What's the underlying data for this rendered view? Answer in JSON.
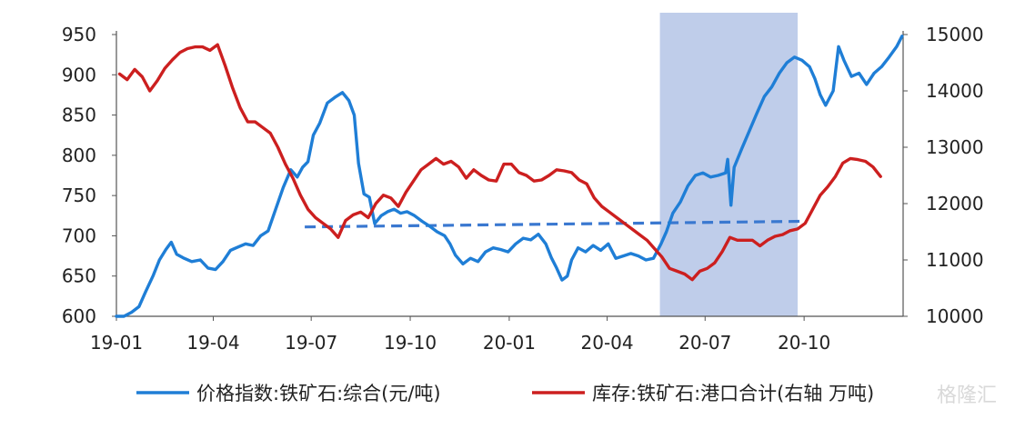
{
  "chart_data": {
    "type": "line",
    "title": "",
    "xlabel": "",
    "ylabel": "",
    "y2label": "",
    "x_ticks": [
      "19-01",
      "19-04",
      "19-07",
      "19-10",
      "20-01",
      "20-04",
      "20-07",
      "20-10"
    ],
    "y_left_ticks": [
      "600",
      "650",
      "700",
      "750",
      "800",
      "850",
      "900",
      "950"
    ],
    "y_right_ticks": [
      "10000",
      "11000",
      "12000",
      "13000",
      "14000",
      "15000"
    ],
    "ylim_left": [
      600,
      950
    ],
    "ylim_right": [
      10000,
      15000
    ],
    "grid": false,
    "legend_position": "bottom",
    "colors": {
      "price": "#1f7ed6",
      "stock": "#cc1f1f",
      "shade": "#b8c8e8",
      "trend": "#3a78d0"
    },
    "shaded_range": [
      "2020-05-20",
      "2020-09-25"
    ],
    "trend_line": {
      "series": "price",
      "points": [
        {
          "x": "2019-06-25",
          "y": 711
        },
        {
          "x": "2020-09-30",
          "y": 718
        }
      ]
    },
    "series": [
      {
        "name": "价格指数:铁矿石:综合(元/吨)",
        "axis": "left",
        "points": [
          [
            "2019-01-01",
            600
          ],
          [
            "2019-01-08",
            600
          ],
          [
            "2019-01-15",
            605
          ],
          [
            "2019-01-22",
            612
          ],
          [
            "2019-01-28",
            630
          ],
          [
            "2019-02-04",
            650
          ],
          [
            "2019-02-10",
            670
          ],
          [
            "2019-02-16",
            683
          ],
          [
            "2019-02-21",
            692
          ],
          [
            "2019-02-26",
            677
          ],
          [
            "2019-03-05",
            672
          ],
          [
            "2019-03-12",
            668
          ],
          [
            "2019-03-20",
            670
          ],
          [
            "2019-03-27",
            660
          ],
          [
            "2019-04-03",
            658
          ],
          [
            "2019-04-10",
            668
          ],
          [
            "2019-04-17",
            682
          ],
          [
            "2019-04-24",
            686
          ],
          [
            "2019-05-01",
            690
          ],
          [
            "2019-05-08",
            688
          ],
          [
            "2019-05-15",
            700
          ],
          [
            "2019-05-22",
            706
          ],
          [
            "2019-05-29",
            733
          ],
          [
            "2019-06-05",
            760
          ],
          [
            "2019-06-12",
            782
          ],
          [
            "2019-06-18",
            773
          ],
          [
            "2019-06-23",
            785
          ],
          [
            "2019-06-28",
            792
          ],
          [
            "2019-07-03",
            825
          ],
          [
            "2019-07-09",
            840
          ],
          [
            "2019-07-16",
            865
          ],
          [
            "2019-07-23",
            872
          ],
          [
            "2019-07-30",
            878
          ],
          [
            "2019-08-05",
            868
          ],
          [
            "2019-08-10",
            850
          ],
          [
            "2019-08-14",
            790
          ],
          [
            "2019-08-19",
            752
          ],
          [
            "2019-08-24",
            748
          ],
          [
            "2019-08-29",
            715
          ],
          [
            "2019-09-04",
            725
          ],
          [
            "2019-09-10",
            730
          ],
          [
            "2019-09-16",
            733
          ],
          [
            "2019-09-22",
            728
          ],
          [
            "2019-09-28",
            730
          ],
          [
            "2019-10-05",
            725
          ],
          [
            "2019-10-12",
            718
          ],
          [
            "2019-10-19",
            712
          ],
          [
            "2019-10-26",
            705
          ],
          [
            "2019-11-02",
            700
          ],
          [
            "2019-11-07",
            690
          ],
          [
            "2019-11-12",
            676
          ],
          [
            "2019-11-19",
            665
          ],
          [
            "2019-11-26",
            672
          ],
          [
            "2019-12-03",
            668
          ],
          [
            "2019-12-10",
            680
          ],
          [
            "2019-12-17",
            685
          ],
          [
            "2019-12-24",
            683
          ],
          [
            "2019-12-31",
            680
          ],
          [
            "2020-01-07",
            690
          ],
          [
            "2020-01-14",
            697
          ],
          [
            "2020-01-21",
            695
          ],
          [
            "2020-01-28",
            702
          ],
          [
            "2020-02-04",
            690
          ],
          [
            "2020-02-09",
            673
          ],
          [
            "2020-02-14",
            660
          ],
          [
            "2020-02-19",
            645
          ],
          [
            "2020-02-24",
            650
          ],
          [
            "2020-02-28",
            670
          ],
          [
            "2020-03-05",
            685
          ],
          [
            "2020-03-12",
            680
          ],
          [
            "2020-03-19",
            688
          ],
          [
            "2020-03-26",
            682
          ],
          [
            "2020-04-02",
            690
          ],
          [
            "2020-04-09",
            672
          ],
          [
            "2020-04-16",
            675
          ],
          [
            "2020-04-23",
            678
          ],
          [
            "2020-04-30",
            675
          ],
          [
            "2020-05-07",
            670
          ],
          [
            "2020-05-14",
            672
          ],
          [
            "2020-05-21",
            690
          ],
          [
            "2020-05-26",
            705
          ],
          [
            "2020-06-01",
            728
          ],
          [
            "2020-06-08",
            742
          ],
          [
            "2020-06-15",
            762
          ],
          [
            "2020-06-22",
            775
          ],
          [
            "2020-06-29",
            778
          ],
          [
            "2020-07-06",
            773
          ],
          [
            "2020-07-13",
            775
          ],
          [
            "2020-07-20",
            778
          ],
          [
            "2020-07-22",
            795
          ],
          [
            "2020-07-25",
            738
          ],
          [
            "2020-07-28",
            785
          ],
          [
            "2020-08-04",
            808
          ],
          [
            "2020-08-11",
            830
          ],
          [
            "2020-08-18",
            852
          ],
          [
            "2020-08-25",
            873
          ],
          [
            "2020-09-01",
            885
          ],
          [
            "2020-09-08",
            902
          ],
          [
            "2020-09-15",
            915
          ],
          [
            "2020-09-22",
            922
          ],
          [
            "2020-09-29",
            918
          ],
          [
            "2020-10-06",
            910
          ],
          [
            "2020-10-11",
            895
          ],
          [
            "2020-10-16",
            875
          ],
          [
            "2020-10-21",
            862
          ],
          [
            "2020-10-28",
            880
          ],
          [
            "2020-11-02",
            935
          ],
          [
            "2020-11-07",
            918
          ],
          [
            "2020-11-14",
            898
          ],
          [
            "2020-11-21",
            902
          ],
          [
            "2020-11-28",
            888
          ],
          [
            "2020-12-05",
            902
          ],
          [
            "2020-12-12",
            910
          ],
          [
            "2020-12-19",
            922
          ],
          [
            "2020-12-26",
            935
          ],
          [
            "2020-12-31",
            948
          ]
        ]
      },
      {
        "name": "库存:铁矿石:港口合计(右轴 万吨)",
        "axis": "right",
        "points": [
          [
            "2019-01-04",
            14300
          ],
          [
            "2019-01-11",
            14200
          ],
          [
            "2019-01-18",
            14380
          ],
          [
            "2019-01-25",
            14250
          ],
          [
            "2019-02-01",
            14000
          ],
          [
            "2019-02-08",
            14180
          ],
          [
            "2019-02-15",
            14400
          ],
          [
            "2019-02-22",
            14550
          ],
          [
            "2019-03-01",
            14680
          ],
          [
            "2019-03-08",
            14750
          ],
          [
            "2019-03-15",
            14780
          ],
          [
            "2019-03-22",
            14780
          ],
          [
            "2019-03-29",
            14720
          ],
          [
            "2019-04-05",
            14820
          ],
          [
            "2019-04-12",
            14450
          ],
          [
            "2019-04-19",
            14050
          ],
          [
            "2019-04-26",
            13700
          ],
          [
            "2019-05-03",
            13450
          ],
          [
            "2019-05-10",
            13450
          ],
          [
            "2019-05-17",
            13350
          ],
          [
            "2019-05-24",
            13250
          ],
          [
            "2019-05-31",
            13000
          ],
          [
            "2019-06-07",
            12700
          ],
          [
            "2019-06-14",
            12450
          ],
          [
            "2019-06-21",
            12150
          ],
          [
            "2019-06-28",
            11900
          ],
          [
            "2019-07-05",
            11750
          ],
          [
            "2019-07-12",
            11650
          ],
          [
            "2019-07-19",
            11550
          ],
          [
            "2019-07-26",
            11400
          ],
          [
            "2019-08-02",
            11700
          ],
          [
            "2019-08-09",
            11800
          ],
          [
            "2019-08-16",
            11850
          ],
          [
            "2019-08-23",
            11750
          ],
          [
            "2019-08-30",
            12000
          ],
          [
            "2019-09-06",
            12150
          ],
          [
            "2019-09-13",
            12100
          ],
          [
            "2019-09-20",
            11950
          ],
          [
            "2019-09-27",
            12200
          ],
          [
            "2019-10-04",
            12400
          ],
          [
            "2019-10-11",
            12600
          ],
          [
            "2019-10-18",
            12700
          ],
          [
            "2019-10-25",
            12800
          ],
          [
            "2019-11-01",
            12700
          ],
          [
            "2019-11-08",
            12750
          ],
          [
            "2019-11-15",
            12650
          ],
          [
            "2019-11-22",
            12450
          ],
          [
            "2019-11-29",
            12600
          ],
          [
            "2019-12-06",
            12500
          ],
          [
            "2019-12-13",
            12420
          ],
          [
            "2019-12-20",
            12400
          ],
          [
            "2019-12-27",
            12700
          ],
          [
            "2020-01-03",
            12700
          ],
          [
            "2020-01-10",
            12550
          ],
          [
            "2020-01-17",
            12500
          ],
          [
            "2020-01-24",
            12400
          ],
          [
            "2020-01-31",
            12420
          ],
          [
            "2020-02-07",
            12500
          ],
          [
            "2020-02-14",
            12600
          ],
          [
            "2020-02-21",
            12580
          ],
          [
            "2020-02-28",
            12550
          ],
          [
            "2020-03-06",
            12420
          ],
          [
            "2020-03-13",
            12350
          ],
          [
            "2020-03-20",
            12100
          ],
          [
            "2020-03-27",
            11950
          ],
          [
            "2020-04-03",
            11850
          ],
          [
            "2020-04-10",
            11750
          ],
          [
            "2020-04-17",
            11650
          ],
          [
            "2020-04-24",
            11550
          ],
          [
            "2020-05-01",
            11450
          ],
          [
            "2020-05-08",
            11350
          ],
          [
            "2020-05-15",
            11200
          ],
          [
            "2020-05-22",
            11050
          ],
          [
            "2020-05-29",
            10850
          ],
          [
            "2020-06-05",
            10800
          ],
          [
            "2020-06-12",
            10750
          ],
          [
            "2020-06-19",
            10650
          ],
          [
            "2020-06-26",
            10800
          ],
          [
            "2020-07-03",
            10850
          ],
          [
            "2020-07-10",
            10950
          ],
          [
            "2020-07-17",
            11150
          ],
          [
            "2020-07-24",
            11400
          ],
          [
            "2020-07-31",
            11350
          ],
          [
            "2020-08-07",
            11350
          ],
          [
            "2020-08-14",
            11350
          ],
          [
            "2020-08-21",
            11250
          ],
          [
            "2020-08-28",
            11350
          ],
          [
            "2020-09-04",
            11420
          ],
          [
            "2020-09-11",
            11450
          ],
          [
            "2020-09-18",
            11520
          ],
          [
            "2020-09-25",
            11550
          ],
          [
            "2020-10-02",
            11650
          ],
          [
            "2020-10-09",
            11900
          ],
          [
            "2020-10-16",
            12150
          ],
          [
            "2020-10-23",
            12300
          ],
          [
            "2020-10-30",
            12480
          ],
          [
            "2020-11-06",
            12720
          ],
          [
            "2020-11-13",
            12800
          ],
          [
            "2020-11-20",
            12780
          ],
          [
            "2020-11-27",
            12750
          ],
          [
            "2020-12-04",
            12650
          ],
          [
            "2020-12-11",
            12480
          ]
        ]
      }
    ]
  },
  "watermark": "格隆汇"
}
